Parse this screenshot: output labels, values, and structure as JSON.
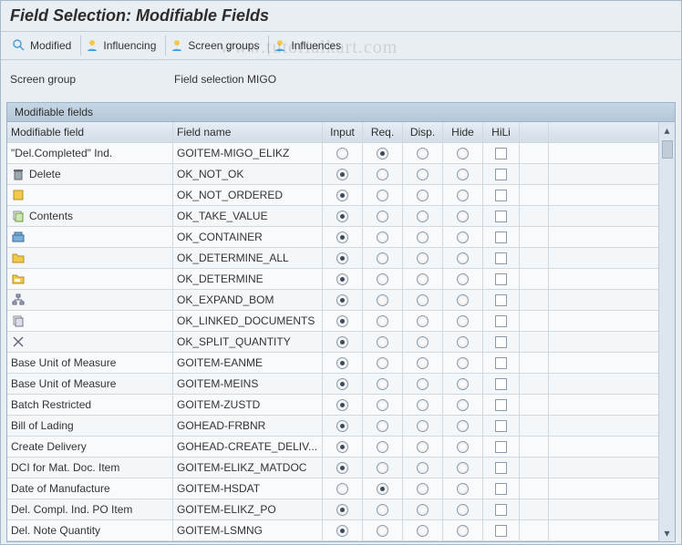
{
  "title": "Field Selection: Modifiable Fields",
  "toolbar": [
    {
      "icon": "magnifier",
      "label": "Modified"
    },
    {
      "icon": "person",
      "label": "Influencing"
    },
    {
      "icon": "person",
      "label": "Screen groups"
    },
    {
      "icon": "person",
      "label": "Influences"
    }
  ],
  "screen_group_label": "Screen group",
  "screen_group_value": "Field selection MIGO",
  "panel_title": "Modifiable fields",
  "columns": {
    "field": "Modifiable field",
    "name": "Field name",
    "input": "Input",
    "req": "Req.",
    "disp": "Disp.",
    "hide": "Hide",
    "hili": "HiLi"
  },
  "rows": [
    {
      "icon": null,
      "field": "\"Del.Completed\" Ind.",
      "name": "GOITEM-MIGO_ELIKZ",
      "sel": "req"
    },
    {
      "icon": "trash",
      "field": "Delete",
      "name": "OK_NOT_OK",
      "sel": "input"
    },
    {
      "icon": "box",
      "field": "",
      "name": "OK_NOT_ORDERED",
      "sel": "input"
    },
    {
      "icon": "copy",
      "field": "Contents",
      "name": "OK_TAKE_VALUE",
      "sel": "input"
    },
    {
      "icon": "container",
      "field": "",
      "name": "OK_CONTAINER",
      "sel": "input"
    },
    {
      "icon": "folder",
      "field": "",
      "name": "OK_DETERMINE_ALL",
      "sel": "input"
    },
    {
      "icon": "folder2",
      "field": "",
      "name": "OK_DETERMINE",
      "sel": "input"
    },
    {
      "icon": "tree",
      "field": "",
      "name": "OK_EXPAND_BOM",
      "sel": "input"
    },
    {
      "icon": "link",
      "field": "",
      "name": "OK_LINKED_DOCUMENTS",
      "sel": "input"
    },
    {
      "icon": "split",
      "field": "",
      "name": "OK_SPLIT_QUANTITY",
      "sel": "input"
    },
    {
      "icon": null,
      "field": "Base Unit of Measure",
      "name": "GOITEM-EANME",
      "sel": "input"
    },
    {
      "icon": null,
      "field": "Base Unit of Measure",
      "name": "GOITEM-MEINS",
      "sel": "input"
    },
    {
      "icon": null,
      "field": "Batch Restricted",
      "name": "GOITEM-ZUSTD",
      "sel": "input"
    },
    {
      "icon": null,
      "field": "Bill of Lading",
      "name": "GOHEAD-FRBNR",
      "sel": "input"
    },
    {
      "icon": null,
      "field": "Create Delivery",
      "name": "GOHEAD-CREATE_DELIV...",
      "sel": "input"
    },
    {
      "icon": null,
      "field": "DCI for Mat. Doc. Item",
      "name": "GOITEM-ELIKZ_MATDOC",
      "sel": "input"
    },
    {
      "icon": null,
      "field": "Date of Manufacture",
      "name": "GOITEM-HSDAT",
      "sel": "req"
    },
    {
      "icon": null,
      "field": "Del. Compl. Ind. PO Item",
      "name": "GOITEM-ELIKZ_PO",
      "sel": "input"
    },
    {
      "icon": null,
      "field": "Del. Note Quantity",
      "name": "GOITEM-LSMNG",
      "sel": "input"
    }
  ],
  "watermark": "www.tutorialkart.com",
  "colors": {
    "bg": "#e9eef3",
    "border": "#a6b8c9",
    "header_grad": [
      "#c7d6e4",
      "#b4c7d8"
    ]
  }
}
